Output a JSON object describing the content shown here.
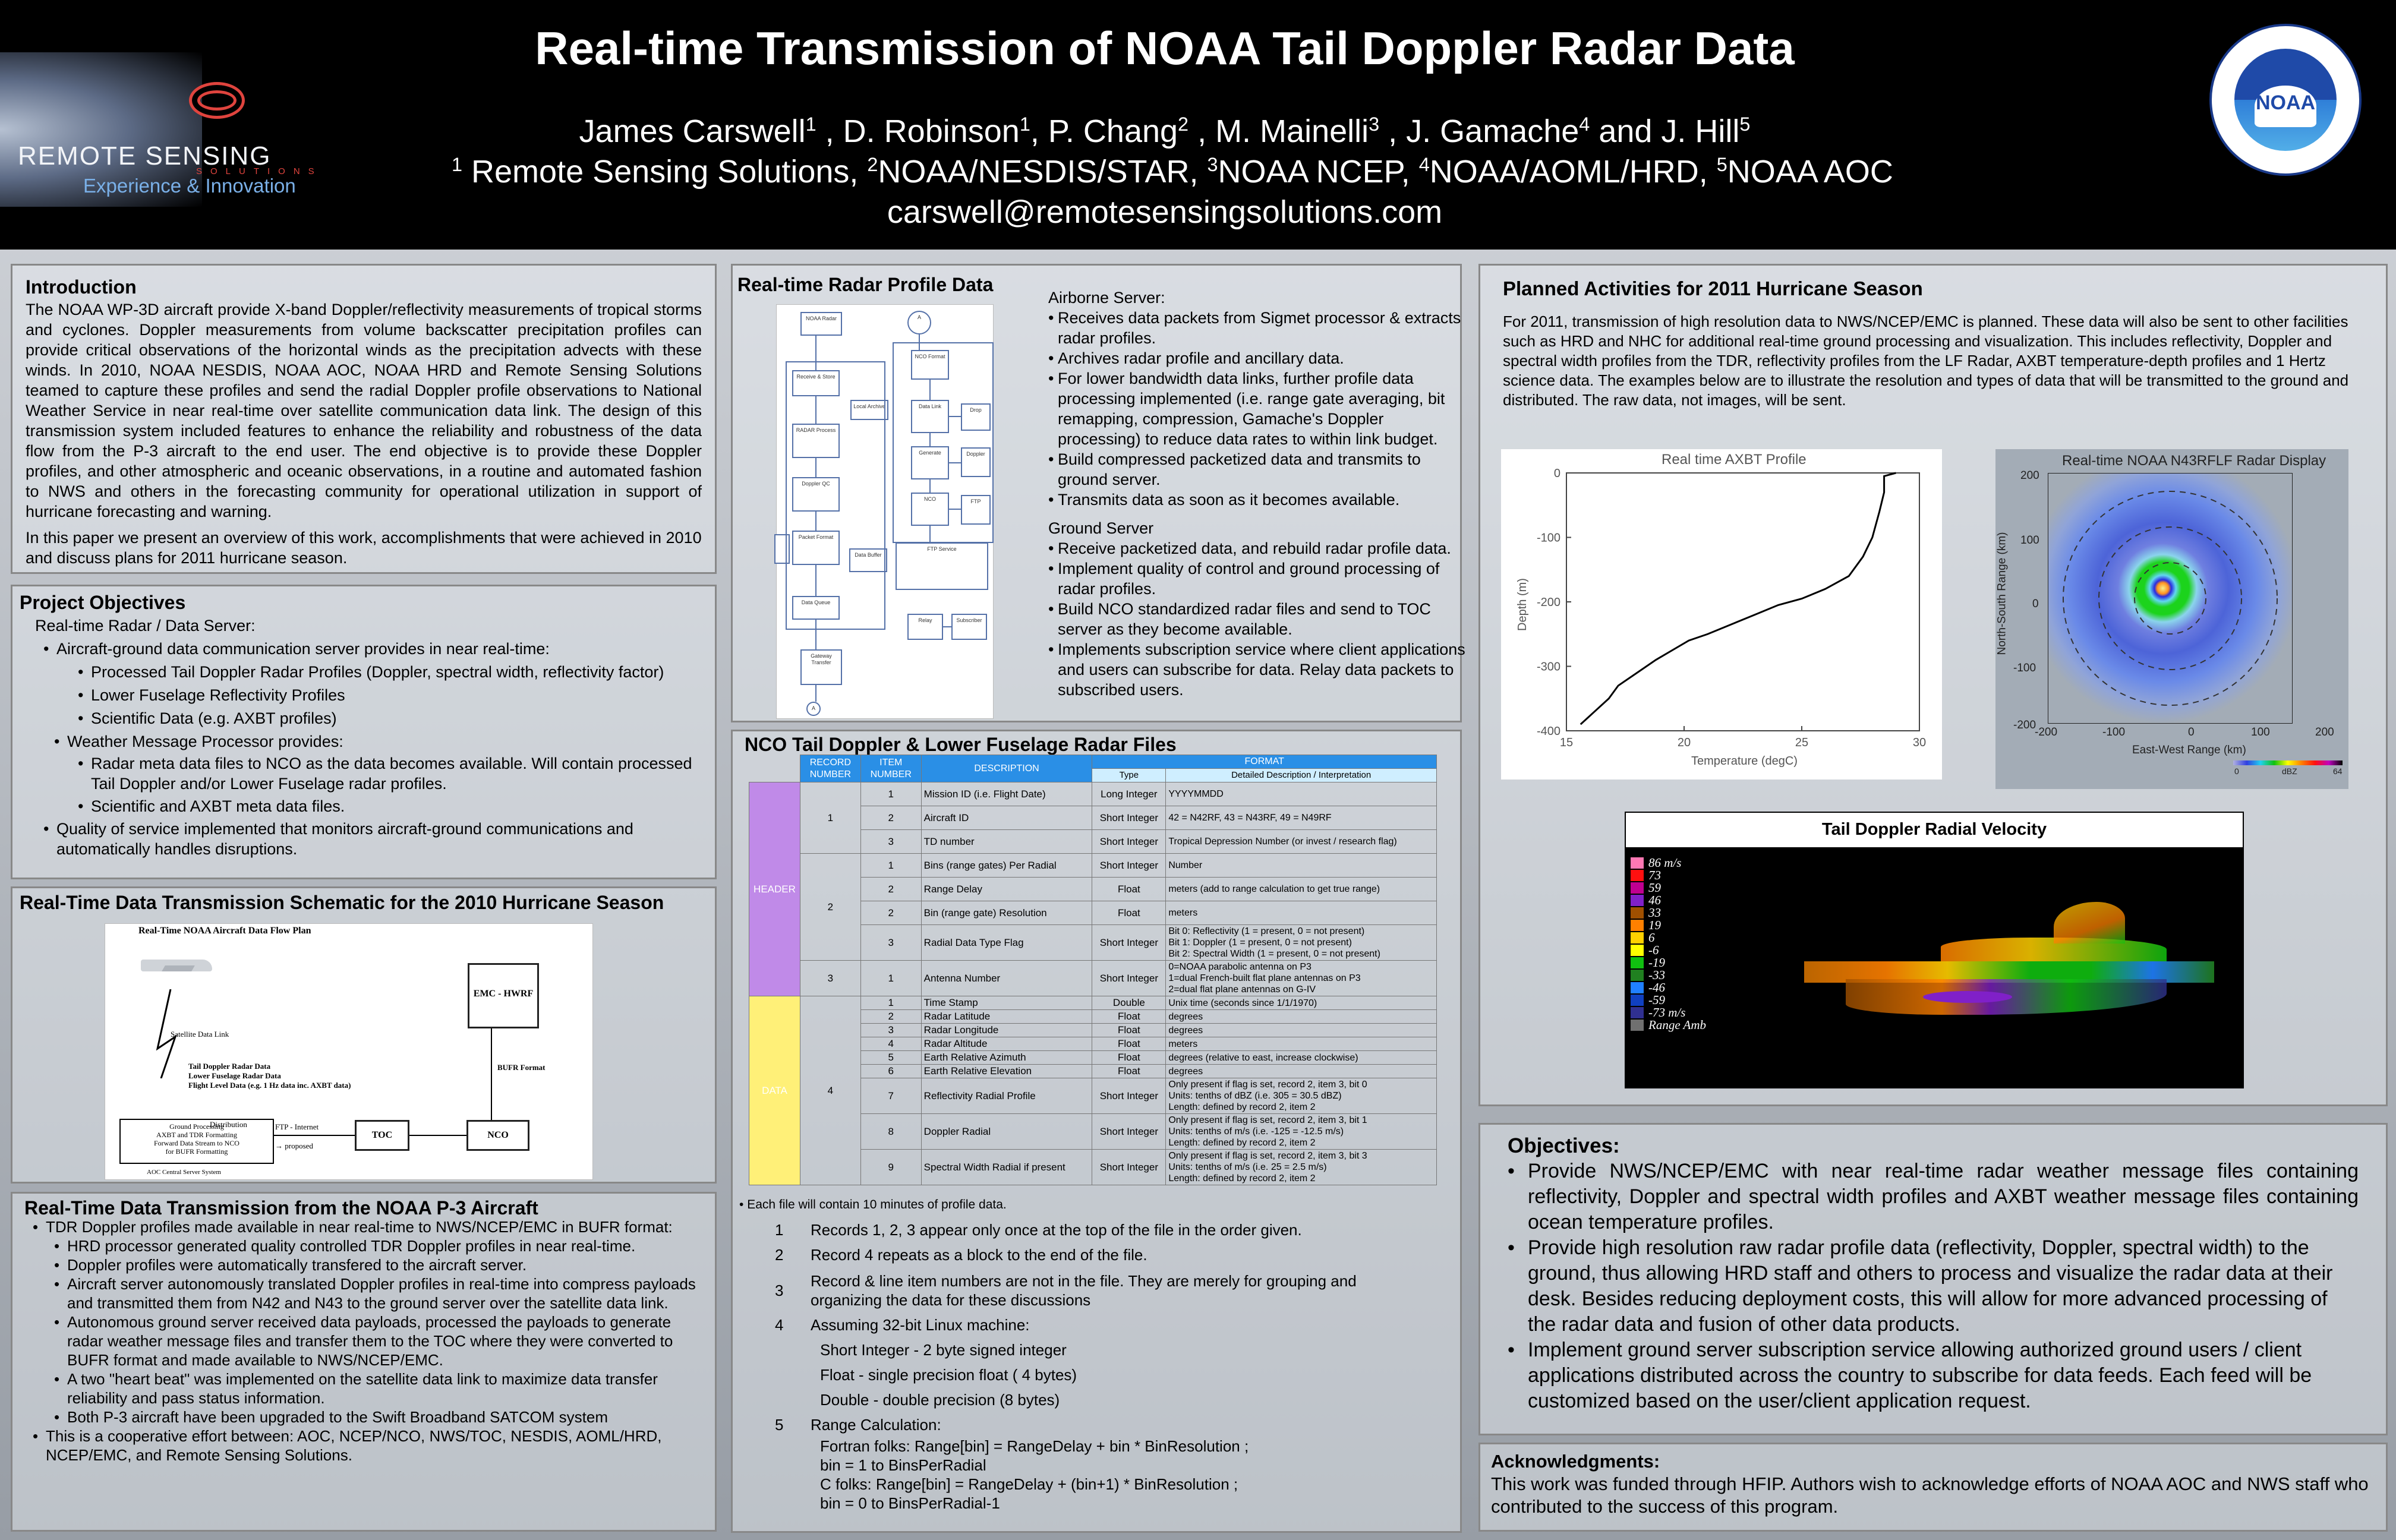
{
  "header": {
    "title": "Real-time Transmission of NOAA Tail Doppler Radar Data",
    "authors_html": "James Carswell<sup>1</sup> , D. Robinson<sup>1</sup>, P. Chang<sup>2</sup> , M. Mainelli<sup>3</sup> , J. Gamache<sup>4</sup> and J. Hill<sup>5</sup>",
    "affiliations_html": "<sup>1</sup> Remote Sensing Solutions, <sup>2</sup>NOAA/NESDIS/STAR, <sup>3</sup>NOAA NCEP, <sup>4</sup>NOAA/AOML/HRD, <sup>5</sup>NOAA AOC",
    "email": "carswell@remotesensingsolutions.com",
    "rs_logo": {
      "name": "REMOTE SENSING",
      "sub": "SOLUTIONS",
      "tagline": "Experience & Innovation"
    },
    "noaa_logo": "NOAA"
  },
  "intro": {
    "title": "Introduction",
    "p1": "The NOAA WP-3D aircraft provide X-band Doppler/reflectivity measurements of tropical storms and cyclones. Doppler measurements from volume backscatter precipitation profiles can provide critical observations of the horizontal winds as the precipitation advects with these winds. In 2010, NOAA NESDIS, NOAA AOC, NOAA HRD and Remote Sensing Solutions teamed to capture these profiles and send the radial Doppler profile observations to National Weather Service in near real-time over satellite communication data link. The design of this transmission system included features to enhance the reliability and robustness of the data flow from the P-3 aircraft to the end user. The end objective is to provide these Doppler profiles, and other atmospheric and oceanic observations, in a routine and automated fashion to NWS and others in the forecasting community for operational utilization in support of hurricane forecasting and warning.",
    "p2": "In this paper we present an overview of this work, accomplishments that were achieved in 2010 and discuss plans for 2011 hurricane season."
  },
  "project": {
    "title": "Project Objectives",
    "l1": "Real-time Radar / Data Server:",
    "l2": "Aircraft-ground data communication server provides in near real-time:",
    "l3": "Processed Tail Doppler Radar Profiles (Doppler, spectral width, reflectivity factor)",
    "l4": "Lower Fuselage Reflectivity Profiles",
    "l5": "Scientific Data (e.g. AXBT profiles)",
    "l6": "Weather Message Processor provides:",
    "l7": "Radar meta data files to NCO as the data becomes available. Will contain processed Tail Doppler and/or Lower Fuselage radar profiles.",
    "l8": "Scientific and AXBT meta data files.",
    "l9": "Quality of service implemented that monitors aircraft-ground communications and automatically handles disruptions."
  },
  "schematic": {
    "title": "Real-Time Data Transmission Schematic for the 2010 Hurricane Season",
    "diagram_title": "Real-Time NOAA Aircraft Data Flow Plan",
    "emc": "EMC - HWRF",
    "bufr": "BUFR Format",
    "satlink": "Satellite Data Link",
    "tdr1": "Tail Doppler Radar Data",
    "tdr2": "Lower Fuselage Radar Data",
    "tdr3": "Flight Level Data (e.g. 1 Hz data inc. AXBT data)",
    "gs1": "Ground Processing",
    "gs2": "AXBT and TDR Formatting",
    "gs3": "Forward Data Stream to NCO",
    "gs4": "for BUFR Formatting",
    "distrib": "Distribution",
    "ftp": "FTP - Internet",
    "toc": "TOC",
    "nco": "NCO",
    "caption": "AOC Central Server System"
  },
  "transmission": {
    "title": "Real-Time Data Transmission from the NOAA P-3 Aircraft",
    "l1": "TDR Doppler profiles made available in near real-time to NWS/NCEP/EMC in BUFR format:",
    "l2": "HRD processor generated quality controlled TDR Doppler profiles in near real-time.",
    "l3": "Doppler profiles were automatically transfered to the aircraft server.",
    "l4": "Aircraft server autonomously translated Doppler profiles in real-time into compress payloads and transmitted them from N42 and N43 to the ground server over the satellite data link.",
    "l5": "Autonomous ground server received data payloads, processed the payloads to generate radar weather message files and transfer them to the TOC where they were converted to BUFR format and made available to NWS/NCEP/EMC.",
    "l6": "A two \"heart beat\" was implemented on the satellite data link to maximize data transfer reliability and pass status information.",
    "l7": "Both P-3 aircraft have been upgraded to the Swift Broadband SATCOM system",
    "l8": "This is a cooperative effort between: AOC, NCEP/NCO, NWS/TOC, NESDIS, AOML/HRD, NCEP/EMC, and Remote Sensing Solutions."
  },
  "profile": {
    "title": "Real-time Radar Profile Data",
    "airborne": "Airborne Server:",
    "a1": "Receives data packets from Sigmet processor & extracts radar profiles.",
    "a2": "Archives radar profile and ancillary data.",
    "a3": "For lower bandwidth data links, further profile data processing implemented (i.e. range gate averaging, bit remapping, compression, Gamache's Doppler processing) to reduce data rates to within link budget.",
    "a4": "Build compressed packetized data and transmits to ground server.",
    "a5": "Transmits data as soon as it becomes available.",
    "ground": "Ground Server",
    "g1": "Receive packetized data, and rebuild radar profile data.",
    "g2": "Implement quality of control and ground processing of radar profiles.",
    "g3": "Build NCO standardized radar files and send to TOC server as they become available.",
    "g4": "Implements subscription service where client applications and users can subscribe for data. Relay data packets to subscribed users."
  },
  "nco": {
    "title": "NCO Tail Doppler & Lower Fuselage Radar Files",
    "h_record": "RECORD NUMBER",
    "h_item": "ITEM NUMBER",
    "h_desc": "DESCRIPTION",
    "h_format": "FORMAT",
    "h_type": "Type",
    "h_detail": "Detailed Description / Interpretation",
    "group_header": "HEADER",
    "group_data": "DATA",
    "rows": [
      {
        "item": "1",
        "desc": "Mission ID (i.e. Flight Date)",
        "type": "Long Integer",
        "detail": "YYYYMMDD"
      },
      {
        "item": "2",
        "desc": "Aircraft ID",
        "type": "Short Integer",
        "detail": "42 = N42RF, 43 = N43RF, 49 = N49RF"
      },
      {
        "item": "3",
        "desc": "TD number",
        "type": "Short Integer",
        "detail": "Tropical Depression Number  (or invest / research flag)"
      },
      {
        "item": "1",
        "desc": "Bins (range gates) Per Radial",
        "type": "Short Integer",
        "detail": "Number"
      },
      {
        "item": "2",
        "desc": "Range Delay",
        "type": "Float",
        "detail": "meters (add to range calculation to get true range)"
      },
      {
        "item": "2",
        "desc": "Bin (range gate) Resolution",
        "type": "Float",
        "detail": "meters"
      },
      {
        "item": "3",
        "desc": "Radial Data Type Flag",
        "type": "Short Integer",
        "detail": "Bit 0: Reflectivity (1 = present, 0 = not present)|Bit 1: Doppler (1 = present, 0 = not present)|Bit 2: Spectral Width (1 = present, 0 = not present)"
      },
      {
        "item": "1",
        "desc": "Antenna Number",
        "type": "Short Integer",
        "detail": "0=NOAA parabolic antenna on P3|1=dual French-built flat plane antennas on P3|2=dual flat plane antennas on G-IV"
      },
      {
        "item": "1",
        "desc": "Time Stamp",
        "type": "Double",
        "detail": "Unix time (seconds since 1/1/1970)"
      },
      {
        "item": "2",
        "desc": "Radar Latitude",
        "type": "Float",
        "detail": "degrees"
      },
      {
        "item": "3",
        "desc": "Radar Longitude",
        "type": "Float",
        "detail": "degrees"
      },
      {
        "item": "4",
        "desc": "Radar Altitude",
        "type": "Float",
        "detail": "meters"
      },
      {
        "item": "5",
        "desc": "Earth Relative Azimuth",
        "type": "Float",
        "detail": "degrees (relative to east, increase clockwise)"
      },
      {
        "item": "6",
        "desc": "Earth Relative Elevation",
        "type": "Float",
        "detail": "degrees"
      },
      {
        "item": "7",
        "desc": "Reflectivity Radial Profile",
        "type": "Short Integer",
        "detail": "Only present if flag is set, record 2, item 3, bit 0|Units: tenths of dBZ (i.e. 305 = 30.5 dBZ)|Length: defined by record 2, item 2"
      },
      {
        "item": "8",
        "desc": "Doppler Radial",
        "type": "Short Integer",
        "detail": "Only present if flag is set, record 2, item 3, bit 1|Units: tenths of m/s (i.e. -125 = -12.5 m/s)|Length: defined by record 2, item 2"
      },
      {
        "item": "9",
        "desc": "Spectral Width Radial if present",
        "type": "Short Integer",
        "detail": "Only present if flag is set, record 2, item 3, bit 3|Units: tenths of m/s (i.e. 25 = 2.5 m/s)|Length: defined by record 2, item 2"
      }
    ],
    "records": [
      "1",
      "2",
      "3",
      "4"
    ],
    "note": "Each file will contain 10 minutes of profile data.",
    "n1": "Records 1, 2, 3 appear only once at the top of the file in the order given.",
    "n2": "Record 4 repeats as a block to the end of the file.",
    "n3": "Record & line item numbers are not in the file. They are merely for grouping and organizing the data for these discussions",
    "n4": "Assuming 32-bit Linux machine:",
    "n4a": "Short Integer - 2 byte signed integer",
    "n4b": "Float - single precision float ( 4 bytes)",
    "n4c": "Double - double precision (8 bytes)",
    "n5": "Range Calculation:",
    "n5a": "Fortran folks:   Range[bin] = RangeDelay + bin * BinResolution ;",
    "n5b": "bin = 1 to BinsPerRadial",
    "n5c": "C folks:   Range[bin] = RangeDelay + (bin+1) * BinResolution ;",
    "n5d": "bin = 0 to BinsPerRadial-1"
  },
  "planned": {
    "title": "Planned Activities for 2011 Hurricane Season",
    "p": "For 2011, transmission of high resolution data to NWS/NCEP/EMC is planned. These data will also be sent to other facilities such as HRD and NHC for additional real-time ground processing and visualization. This includes reflectivity, Doppler and spectral width profiles from the TDR, reflectivity profiles from the LF Radar, AXBT temperature-depth profiles and 1 Hertz science data. The examples below are to illustrate the resolution and types of data that will be transmitted to the ground and distributed. The raw data, not images, will be sent."
  },
  "chart_data": [
    {
      "type": "line",
      "title": "Real  time AXBT Profile",
      "xlabel": "Temperature (degC)",
      "ylabel": "Depth (m)",
      "xlim": [
        15,
        30
      ],
      "ylim": [
        -400,
        0
      ],
      "xticks": [
        "15",
        "20",
        "25",
        "30"
      ],
      "yticks": [
        "0",
        "-100",
        "-200",
        "-300",
        "-400"
      ],
      "x": [
        15.6,
        16.2,
        16.8,
        17.2,
        18.0,
        18.8,
        19.5,
        20.2,
        21.0,
        22.0,
        23.0,
        24.0,
        25.0,
        26.0,
        27.0,
        27.6,
        28.0,
        28.3,
        28.5,
        28.5,
        29.0
      ],
      "y": [
        -390,
        -370,
        -350,
        -330,
        -310,
        -290,
        -275,
        -260,
        -250,
        -235,
        -220,
        -205,
        -195,
        -180,
        -160,
        -130,
        -100,
        -60,
        -30,
        -5,
        0
      ]
    },
    {
      "type": "heatmap",
      "title": "Real-time NOAA N43RFLF Radar Display",
      "xlabel": "East-West Range (km)",
      "ylabel": "North-South Range (km)",
      "xticks": [
        "-200",
        "-100",
        "0",
        "100",
        "200"
      ],
      "yticks": [
        "200",
        "100",
        "0",
        "-100",
        "-200"
      ],
      "colorbar": [
        "0",
        "dBZ",
        "64"
      ]
    },
    {
      "type": "heatmap",
      "title": "Tail Doppler Radial Velocity",
      "legend": [
        "86 m/s",
        "73",
        "59",
        "46",
        "33",
        "19",
        "6",
        "-6",
        "-19",
        "-33",
        "-46",
        "-59",
        "-73 m/s",
        "Range Amb"
      ],
      "legend_colors": [
        "#ff78b4",
        "#ff1010",
        "#c00090",
        "#8020c8",
        "#a05000",
        "#ff8000",
        "#ffd000",
        "#ffff00",
        "#10c010",
        "#208020",
        "#2080ff",
        "#1040c0",
        "#303090",
        "#707070"
      ]
    }
  ],
  "objectives": {
    "title": "Objectives:",
    "o1": "Provide NWS/NCEP/EMC with near real-time radar weather message files containing reflectivity, Doppler and spectral width profiles and AXBT weather message files containing ocean temperature profiles.",
    "o2": "Provide high resolution raw radar  profile data (reflectivity, Doppler, spectral width) to the ground, thus allowing HRD staff and others to process and visualize the radar data at their desk. Besides reducing deployment costs, this will allow for more advanced processing of the radar data and fusion of other data products.",
    "o3": "Implement ground server subscription service allowing authorized ground users / client applications distributed across the country to subscribe for data feeds. Each feed will be customized based on the user/client application request."
  },
  "ack": {
    "title": "Acknowledgments:",
    "p": "This work was funded through HFIP. Authors wish to acknowledge efforts of NOAA AOC and NWS staff who contributed to the success of this program."
  }
}
